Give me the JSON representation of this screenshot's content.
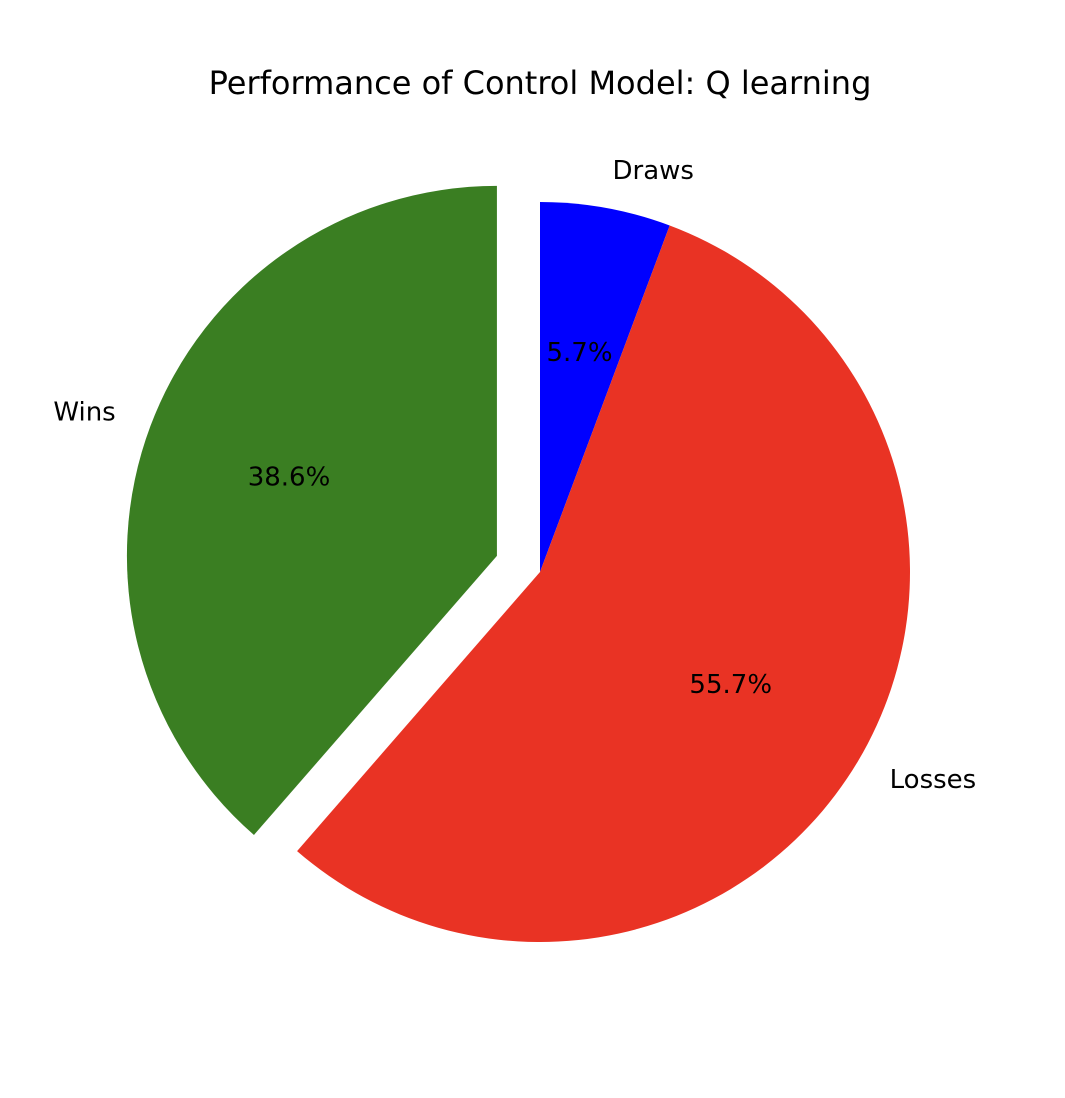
{
  "chart_data": {
    "type": "pie",
    "title": "Performance of Control Model: Q learning",
    "slices": [
      {
        "label": "Draws",
        "value": 5.7,
        "pct_label": "5.7%",
        "color": "#0000ff",
        "exploded": false
      },
      {
        "label": "Losses",
        "value": 55.7,
        "pct_label": "55.7%",
        "color": "#e93324",
        "exploded": false
      },
      {
        "label": "Wins",
        "value": 38.6,
        "pct_label": "38.6%",
        "color": "#3a7e22",
        "exploded": true
      }
    ],
    "start_angle_deg": 90,
    "direction": "clockwise"
  }
}
